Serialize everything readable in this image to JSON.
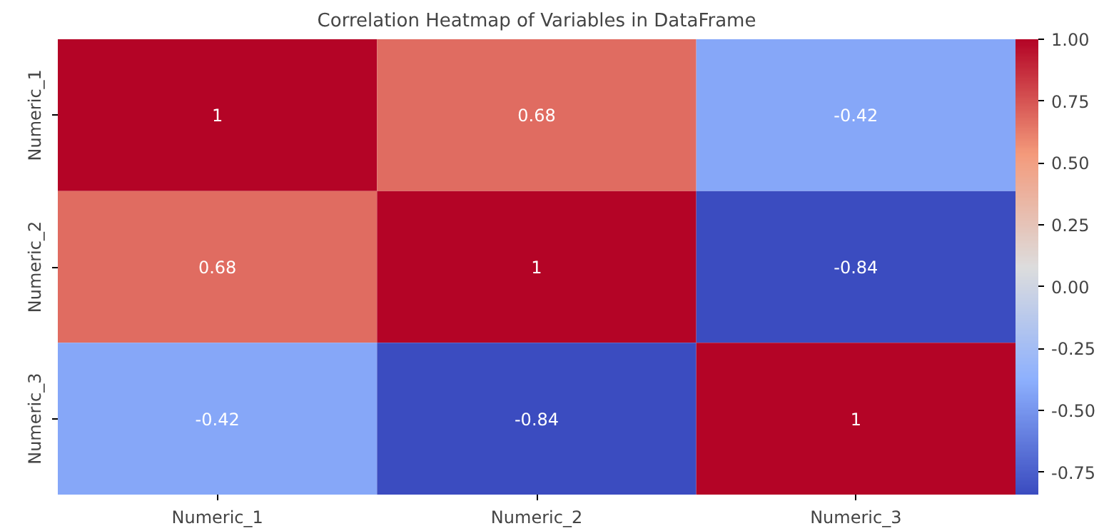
{
  "chart_data": {
    "type": "heatmap",
    "title": "Correlation Heatmap of Variables in DataFrame",
    "categories": [
      "Numeric_1",
      "Numeric_2",
      "Numeric_3"
    ],
    "y_categories": [
      "Numeric_1",
      "Numeric_2",
      "Numeric_3"
    ],
    "cells": [
      [
        1,
        0.68,
        -0.42
      ],
      [
        0.68,
        1,
        -0.84
      ],
      [
        -0.42,
        -0.84,
        1
      ]
    ],
    "data_labels": true,
    "clim": [
      -0.84,
      1
    ],
    "cticks": [
      {
        "value": -0.75,
        "label": "-0.75"
      },
      {
        "value": -0.5,
        "label": "-0.50"
      },
      {
        "value": -0.25,
        "label": "-0.25"
      },
      {
        "value": 0,
        "label": "0.00"
      },
      {
        "value": 0.25,
        "label": "0.25"
      },
      {
        "value": 0.5,
        "label": "0.50"
      },
      {
        "value": 0.75,
        "label": "0.75"
      },
      {
        "value": 1,
        "label": "1.00"
      }
    ],
    "grid": false
  }
}
